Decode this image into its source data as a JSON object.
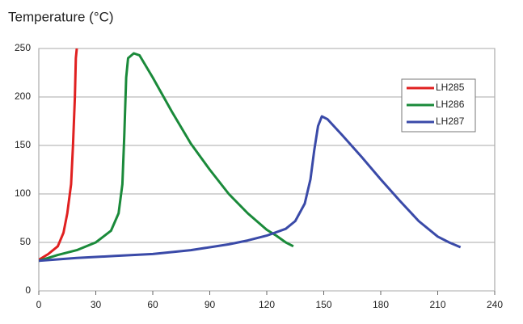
{
  "chart_data": {
    "type": "line",
    "title": "Temperature (°C)",
    "xlim": [
      0,
      240
    ],
    "xticks": [
      0,
      30,
      60,
      90,
      120,
      150,
      180,
      210,
      240
    ],
    "ylim": [
      0,
      250
    ],
    "yticks": [
      0,
      50,
      100,
      150,
      200,
      250
    ],
    "grid": true,
    "legend": "upper right",
    "series": [
      {
        "name": "LH285",
        "color": "#e02020",
        "x": [
          0,
          5,
          10,
          13,
          15,
          17,
          18,
          19,
          19.5,
          20
        ],
        "values": [
          32,
          38,
          46,
          60,
          80,
          110,
          150,
          200,
          240,
          250
        ]
      },
      {
        "name": "LH286",
        "color": "#1a8a3a",
        "x": [
          0,
          10,
          20,
          30,
          38,
          42,
          44,
          45,
          46,
          47,
          50,
          53,
          60,
          70,
          80,
          90,
          100,
          110,
          120,
          125,
          130,
          134
        ],
        "values": [
          31,
          37,
          42,
          50,
          62,
          80,
          110,
          160,
          220,
          240,
          245,
          243,
          220,
          185,
          152,
          125,
          100,
          80,
          63,
          57,
          50,
          46
        ]
      },
      {
        "name": "LH287",
        "color": "#3a4aa8",
        "x": [
          0,
          20,
          40,
          60,
          80,
          100,
          110,
          120,
          130,
          135,
          140,
          143,
          145,
          147,
          149,
          152,
          160,
          170,
          180,
          190,
          200,
          210,
          216,
          222
        ],
        "values": [
          31,
          34,
          36,
          38,
          42,
          48,
          52,
          57,
          64,
          72,
          90,
          115,
          145,
          170,
          180,
          177,
          160,
          138,
          115,
          93,
          72,
          56,
          50,
          45
        ]
      }
    ]
  }
}
